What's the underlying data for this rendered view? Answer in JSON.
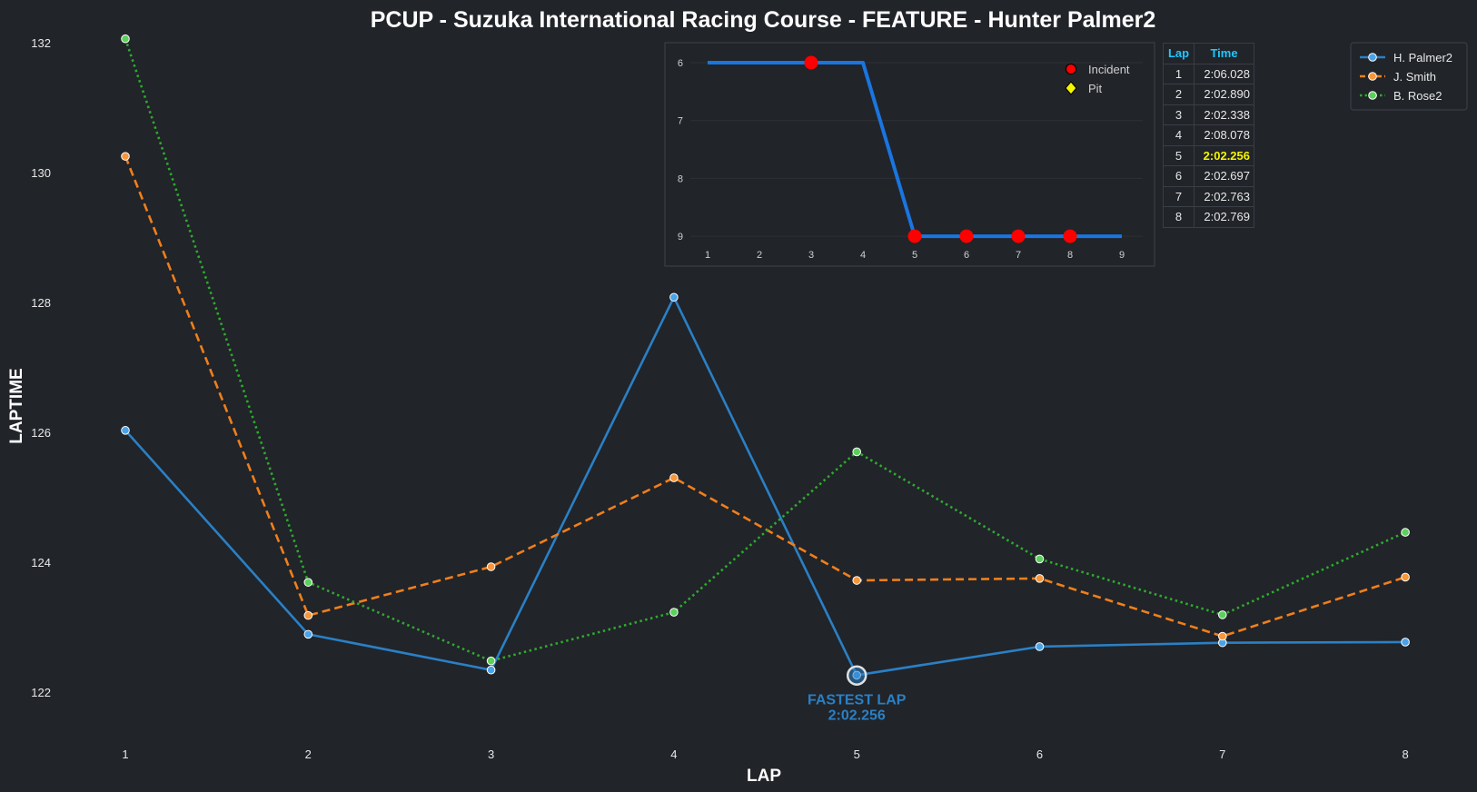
{
  "chart_data": {
    "type": "line",
    "title": "PCUP - Suzuka International Racing Course - FEATURE - Hunter Palmer2",
    "xlabel": "LAP",
    "ylabel": "LAPTIME",
    "x": [
      1,
      2,
      3,
      4,
      5,
      6,
      7,
      8
    ],
    "ylim": [
      121,
      132
    ],
    "yticks": [
      122,
      124,
      126,
      128,
      130,
      132
    ],
    "grid": false,
    "legend_position": "top-right",
    "series": [
      {
        "name": "H. Palmer2",
        "color": "#2a80c6",
        "marker_color": "#4aa3e8",
        "style": "solid",
        "values": [
          126.03,
          122.89,
          122.34,
          128.08,
          122.26,
          122.7,
          122.76,
          122.77
        ]
      },
      {
        "name": "J. Smith",
        "color": "#f07f1b",
        "marker_color": "#f7963a",
        "style": "dashed",
        "values": [
          130.25,
          123.18,
          123.93,
          125.3,
          123.72,
          123.75,
          122.86,
          123.77
        ]
      },
      {
        "name": "B. Rose2",
        "color": "#2eaa2e",
        "marker_color": "#5cd05c",
        "style": "dotted",
        "values": [
          132.06,
          123.69,
          122.48,
          123.23,
          125.7,
          124.05,
          123.19,
          124.46
        ]
      }
    ],
    "annotation": {
      "label": "FASTEST LAP",
      "value": "2:02.256",
      "lap": 5,
      "laptime": 122.256,
      "color": "#2a80c6"
    },
    "inset": {
      "type": "line",
      "x": [
        1,
        2,
        3,
        4,
        5,
        6,
        7,
        8,
        9
      ],
      "values": [
        6,
        6,
        6,
        6,
        9,
        9,
        9,
        9,
        9
      ],
      "ylim": [
        9.3,
        5.7
      ],
      "yticks": [
        6,
        7,
        8,
        9
      ],
      "line_color": "#1a75e0",
      "incidents": [
        3,
        5,
        6,
        7,
        8
      ],
      "pits": [],
      "legend": [
        {
          "label": "Incident",
          "color": "#ff0000",
          "marker": "circle"
        },
        {
          "label": "Pit",
          "color": "#f5f500",
          "marker": "diamond"
        }
      ]
    }
  },
  "table": {
    "headers": [
      "Lap",
      "Time"
    ],
    "rows": [
      {
        "lap": "1",
        "time": "2:06.028"
      },
      {
        "lap": "2",
        "time": "2:02.890"
      },
      {
        "lap": "3",
        "time": "2:02.338"
      },
      {
        "lap": "4",
        "time": "2:08.078"
      },
      {
        "lap": "5",
        "time": "2:02.256"
      },
      {
        "lap": "6",
        "time": "2:02.697"
      },
      {
        "lap": "7",
        "time": "2:02.763"
      },
      {
        "lap": "8",
        "time": "2:02.769"
      }
    ],
    "best_lap": "5"
  },
  "colors": {
    "background": "#212429",
    "text": "#ffffff",
    "table_header": "#1ec8ff",
    "best_time": "#f5f500"
  }
}
